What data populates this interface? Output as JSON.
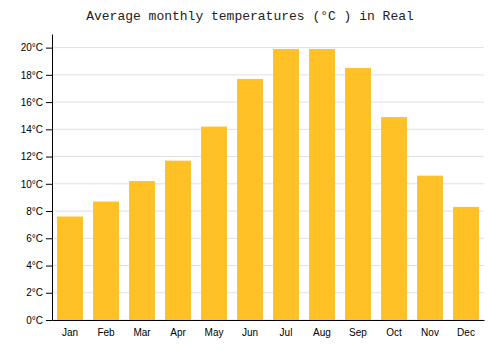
{
  "chart_data": {
    "type": "bar",
    "title": "Average monthly temperatures (°C ) in Real",
    "categories": [
      "Jan",
      "Feb",
      "Mar",
      "Apr",
      "May",
      "Jun",
      "Jul",
      "Aug",
      "Sep",
      "Oct",
      "Nov",
      "Dec"
    ],
    "values": [
      7.6,
      8.7,
      10.2,
      11.7,
      14.2,
      17.7,
      19.9,
      19.9,
      18.5,
      14.9,
      10.6,
      8.3
    ],
    "color": "#FFC125",
    "ylim": [
      0,
      21
    ],
    "yticks": [
      {
        "value": 0,
        "label": "0°C"
      },
      {
        "value": 2,
        "label": "2°C"
      },
      {
        "value": 4,
        "label": "4°C"
      },
      {
        "value": 6,
        "label": "6°C"
      },
      {
        "value": 8,
        "label": "8°C"
      },
      {
        "value": 10,
        "label": "10°C"
      },
      {
        "value": 12,
        "label": "12°C"
      },
      {
        "value": 14,
        "label": "14°C"
      },
      {
        "value": 16,
        "label": "16°C"
      },
      {
        "value": 18,
        "label": "18°C"
      },
      {
        "value": 20,
        "label": "20°C"
      }
    ],
    "grid": true
  }
}
